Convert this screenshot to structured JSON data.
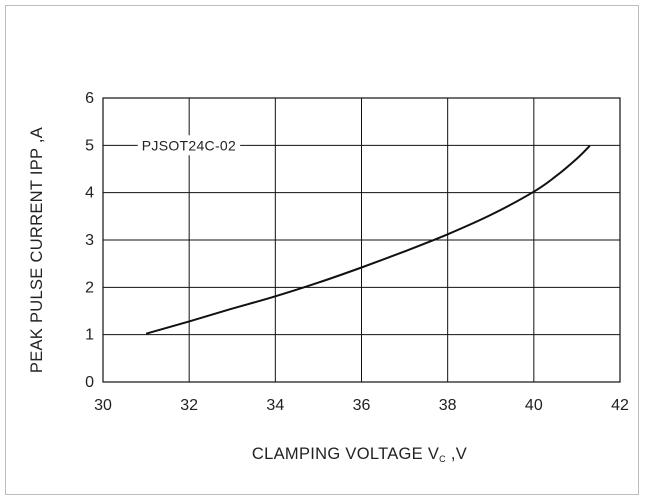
{
  "chart_data": {
    "type": "line",
    "xlabel": {
      "main": "CLAMPING VOLTAGE V",
      "sub": "C",
      "suffix": " ,V"
    },
    "ylabel": "PEAK PULSE CURRENT IPP ,A",
    "xlim": [
      30,
      42
    ],
    "ylim": [
      0,
      6
    ],
    "x_ticks": [
      "30",
      "32",
      "34",
      "36",
      "38",
      "40",
      "42"
    ],
    "y_ticks": [
      "0",
      "1",
      "2",
      "3",
      "4",
      "5",
      "6"
    ],
    "grid": true,
    "annotation": "PJSOT24C-02",
    "series": [
      {
        "color": "#111111",
        "x": [
          31.0,
          32.0,
          33.0,
          34.0,
          35.0,
          36.0,
          37.0,
          38.0,
          39.0,
          40.0,
          40.5,
          41.0,
          41.3
        ],
        "y": [
          1.02,
          1.28,
          1.55,
          1.81,
          2.1,
          2.42,
          2.76,
          3.12,
          3.53,
          4.02,
          4.34,
          4.72,
          4.99
        ]
      }
    ]
  }
}
